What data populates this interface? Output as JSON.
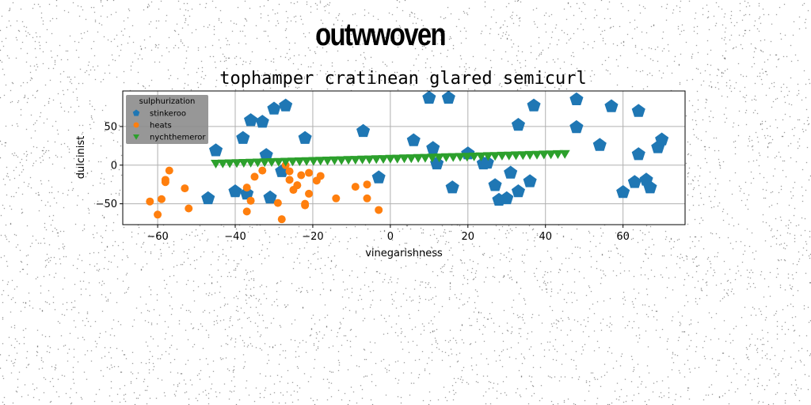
{
  "suptitle": "outwwoven",
  "chart_data": {
    "type": "scatter",
    "title": "tophamper cratinean glared semicurl",
    "xlabel": "vinegarishness",
    "ylabel": "dulcinist",
    "xlim": [
      -69,
      76
    ],
    "ylim": [
      -77,
      96
    ],
    "xticks": [
      -60,
      -40,
      -20,
      0,
      20,
      40,
      60
    ],
    "yticks": [
      -50,
      0,
      50
    ],
    "grid": true,
    "legend": {
      "title": "sulphurization",
      "placement": "upper-left"
    },
    "series": [
      {
        "name": "stinkeroo",
        "marker": "pentagon",
        "color": "#1f77b4",
        "x": [
          -47,
          -45,
          -38,
          -36,
          -33,
          -32,
          -31,
          -30,
          -28,
          -27,
          -22,
          -37,
          -40,
          -7,
          -3,
          6,
          10,
          11,
          12,
          15,
          16,
          20,
          24,
          25,
          27,
          28,
          30,
          31,
          33,
          33,
          36,
          37,
          48,
          48,
          54,
          57,
          60,
          63,
          64,
          64,
          66,
          67,
          69,
          70
        ],
        "y": [
          -43,
          19,
          35,
          58,
          56,
          13,
          -42,
          73,
          -8,
          77,
          35,
          -37,
          -34,
          44,
          -16,
          32,
          87,
          22,
          2,
          87,
          -29,
          15,
          2,
          3,
          -26,
          -45,
          -43,
          -10,
          52,
          -34,
          -21,
          77,
          85,
          49,
          26,
          76,
          -35,
          -22,
          70,
          14,
          -19,
          -29,
          23,
          33
        ]
      },
      {
        "name": "heats",
        "marker": "circle",
        "color": "#ff7f0e",
        "x": [
          -62,
          -60,
          -59,
          -58,
          -58,
          -57,
          -53,
          -52,
          -37,
          -37,
          -36,
          -35,
          -33,
          -29,
          -28,
          -27,
          -26,
          -26,
          -25,
          -24,
          -23,
          -22,
          -22,
          -21,
          -21,
          -19,
          -18,
          -14,
          -9,
          -6,
          -6,
          -3
        ],
        "y": [
          -47,
          -64,
          -44,
          -22,
          -19,
          -7,
          -30,
          -56,
          -29,
          -60,
          -46,
          -15,
          -7,
          -49,
          -70,
          0,
          -8,
          -19,
          -32,
          -26,
          -13,
          -52,
          -50,
          -10,
          -37,
          -20,
          -14,
          -43,
          -28,
          -25,
          -43,
          -58
        ]
      },
      {
        "name": "nychthemeror",
        "marker": "triangle-down",
        "color": "#2ca02c",
        "x": [
          -45.0,
          -43.2,
          -41.4,
          -39.6,
          -37.8,
          -36.0,
          -34.2,
          -32.4,
          -30.6,
          -28.8,
          -27.0,
          -25.2,
          -23.4,
          -21.6,
          -19.8,
          -18.0,
          -16.2,
          -14.4,
          -12.6,
          -10.8,
          -9.0,
          -7.2,
          -5.4,
          -3.6,
          -1.8,
          0.0,
          1.8,
          3.6,
          5.4,
          7.2,
          9.0,
          10.8,
          12.6,
          14.4,
          16.2,
          18.0,
          19.8,
          21.6,
          23.4,
          25.2,
          27.0,
          28.8,
          30.6,
          32.4,
          34.2,
          36.0,
          37.8,
          39.6,
          41.4,
          43.2,
          45.0
        ],
        "y": [
          2.0,
          2.3,
          2.5,
          2.8,
          3.0,
          3.3,
          3.5,
          3.8,
          4.0,
          4.3,
          4.5,
          4.8,
          5.0,
          5.3,
          5.5,
          5.8,
          6.0,
          6.3,
          6.5,
          6.8,
          7.0,
          7.3,
          7.5,
          7.8,
          8.0,
          8.3,
          8.5,
          8.8,
          9.0,
          9.3,
          9.5,
          9.8,
          10.0,
          10.3,
          10.5,
          10.8,
          11.0,
          11.3,
          11.5,
          11.8,
          12.0,
          12.3,
          12.5,
          12.8,
          13.0,
          13.3,
          13.5,
          13.8,
          14.0,
          14.3,
          14.5
        ]
      }
    ]
  }
}
